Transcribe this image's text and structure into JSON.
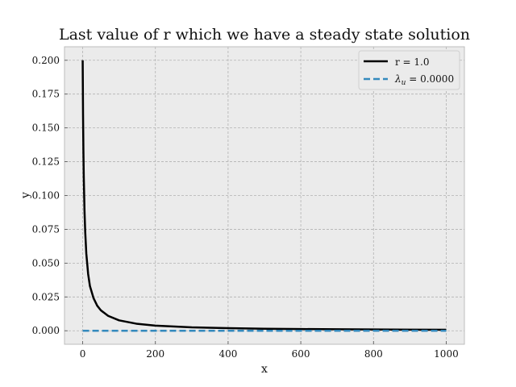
{
  "chart_data": {
    "type": "line",
    "title": "Last value of r which we have a steady state solution",
    "xlabel": "x",
    "ylabel": "y",
    "xlim": [
      -50,
      1050
    ],
    "ylim": [
      -0.01,
      0.21
    ],
    "xticks": [
      0,
      200,
      400,
      600,
      800,
      1000
    ],
    "xtick_labels": [
      "0",
      "200",
      "400",
      "600",
      "800",
      "1000"
    ],
    "yticks": [
      0.0,
      0.025,
      0.05,
      0.075,
      0.1,
      0.125,
      0.15,
      0.175,
      0.2
    ],
    "ytick_labels": [
      "0.000",
      "0.025",
      "0.050",
      "0.075",
      "0.100",
      "0.125",
      "0.150",
      "0.175",
      "0.200"
    ],
    "grid": true,
    "legend_position": "top-right",
    "background_color": "#ebebeb",
    "series": [
      {
        "name": "r = 1.0",
        "color": "#000000",
        "style": "solid",
        "x": [
          0,
          1,
          2,
          3,
          5,
          7,
          10,
          15,
          20,
          30,
          40,
          50,
          70,
          100,
          150,
          200,
          300,
          400,
          500,
          600,
          700,
          800,
          900,
          1000
        ],
        "y": [
          0.2,
          0.16,
          0.133,
          0.114,
          0.089,
          0.073,
          0.057,
          0.042,
          0.033,
          0.024,
          0.0185,
          0.0151,
          0.011,
          0.0077,
          0.0051,
          0.0038,
          0.0025,
          0.0019,
          0.0015,
          0.00125,
          0.00107,
          0.00094,
          0.00083,
          0.00075
        ]
      },
      {
        "name": "λ_u = 0.0000",
        "legend_main": "λ",
        "legend_sub": "u",
        "legend_rest": " = 0.0000",
        "color": "#348abd",
        "style": "dashed",
        "x": [
          0,
          1000
        ],
        "y": [
          0.0,
          0.0
        ]
      }
    ]
  }
}
